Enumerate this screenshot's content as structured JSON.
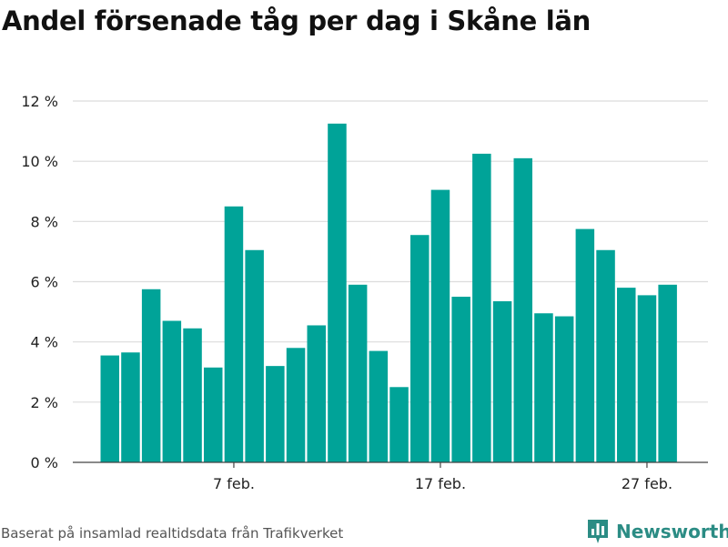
{
  "title": "Andel försenade tåg per dag i Skåne län",
  "footer": {
    "source": "Baserat på insamlad realtidsdata från Trafikverket",
    "brand": "Newsworthy"
  },
  "colors": {
    "bar": "#00a398",
    "grid": "#dcdcdc",
    "axis": "#444444",
    "brand": "#2b8c84"
  },
  "icons": {
    "brand_logo": "bar-chart-icon"
  },
  "chart_data": {
    "type": "bar",
    "title": "Andel försenade tåg per dag i Skåne län",
    "xlabel": "",
    "ylabel": "",
    "ylim": [
      0,
      12
    ],
    "yticks": [
      0,
      2,
      4,
      6,
      8,
      10,
      12
    ],
    "ytick_labels": [
      "0 %",
      "2 %",
      "4 %",
      "6 %",
      "8 %",
      "10 %",
      "12 %"
    ],
    "x": [
      1,
      2,
      3,
      4,
      5,
      6,
      7,
      8,
      9,
      10,
      11,
      12,
      13,
      14,
      15,
      16,
      17,
      18,
      19,
      20,
      21,
      22,
      23,
      24,
      25,
      26,
      27,
      28
    ],
    "values": [
      3.55,
      3.65,
      5.75,
      4.7,
      4.45,
      3.15,
      8.5,
      7.05,
      3.2,
      3.8,
      4.55,
      11.25,
      5.9,
      3.7,
      2.5,
      7.55,
      9.05,
      5.5,
      10.25,
      5.35,
      10.1,
      4.95,
      4.85,
      7.75,
      7.05,
      5.8,
      5.55,
      5.9
    ],
    "xticks": [
      7,
      17,
      27
    ],
    "xtick_labels": [
      "7 feb.",
      "17 feb.",
      "27 feb."
    ],
    "grid": true,
    "legend": "none"
  }
}
